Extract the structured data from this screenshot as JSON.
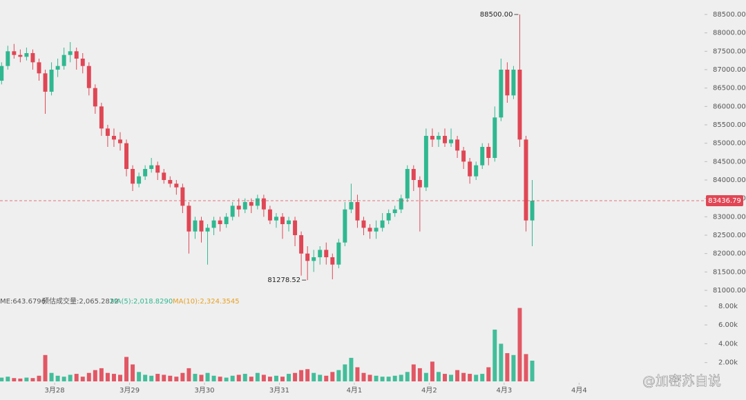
{
  "chart_data": {
    "type": "candlestick",
    "x": [
      -17,
      -15,
      -13,
      -11,
      -9,
      -7,
      -5,
      -3,
      -1,
      1,
      3,
      5,
      7,
      9,
      11,
      13,
      15,
      17,
      19,
      21,
      23,
      25,
      27,
      29,
      31,
      33,
      35,
      37,
      39,
      41,
      43,
      45,
      47,
      49,
      51,
      53,
      55,
      57,
      59,
      61,
      63,
      65,
      67,
      69,
      71,
      73,
      75,
      77,
      79,
      81,
      83,
      85,
      87,
      89,
      91,
      93,
      95,
      97,
      99,
      101,
      103,
      105,
      107,
      109,
      111,
      113,
      115,
      117,
      119,
      121,
      123,
      125,
      127,
      129,
      131,
      133,
      135,
      137,
      139,
      141,
      143,
      145,
      147,
      149,
      151,
      153
    ],
    "open": [
      86700,
      87100,
      87500,
      87400,
      87350,
      87450,
      87200,
      86900,
      86400,
      87000,
      87100,
      87400,
      87500,
      87300,
      87100,
      86500,
      86000,
      85400,
      85200,
      85100,
      85000,
      84300,
      83900,
      84100,
      84300,
      84400,
      84200,
      84000,
      83900,
      83800,
      83300,
      82600,
      82900,
      82600,
      82700,
      82900,
      82800,
      83000,
      83300,
      83200,
      83400,
      83300,
      83500,
      83200,
      82900,
      83000,
      82800,
      82900,
      82500,
      82000,
      81800,
      81900,
      82100,
      81900,
      81700,
      82300,
      83200,
      83400,
      82900,
      82700,
      82600,
      82700,
      82900,
      83100,
      83200,
      83500,
      84300,
      84000,
      83800,
      85200,
      85100,
      85200,
      85000,
      85100,
      84800,
      84500,
      84100,
      84400,
      84900,
      84600,
      85700,
      87000,
      86300,
      87000,
      85100,
      82900
    ],
    "high": [
      87200,
      87650,
      87700,
      87550,
      87600,
      87550,
      87300,
      87000,
      87200,
      87300,
      87600,
      87750,
      87600,
      87450,
      87200,
      86600,
      86100,
      85500,
      85400,
      85300,
      85100,
      84400,
      84200,
      84400,
      84600,
      84500,
      84300,
      84100,
      84000,
      83900,
      83400,
      83000,
      83000,
      82800,
      83000,
      83000,
      83100,
      83400,
      83500,
      83500,
      83500,
      83600,
      83600,
      83300,
      83100,
      83100,
      83000,
      83000,
      82600,
      82200,
      82100,
      82200,
      82300,
      82000,
      82400,
      83400,
      83900,
      83600,
      83000,
      82800,
      82900,
      83100,
      83200,
      83300,
      83600,
      84400,
      84400,
      84100,
      85400,
      85400,
      85300,
      85400,
      85400,
      85200,
      84900,
      84600,
      84500,
      85000,
      85000,
      86000,
      87300,
      87200,
      87100,
      88500,
      85200,
      84000
    ],
    "low": [
      86600,
      87000,
      87300,
      87200,
      87250,
      87000,
      86700,
      85800,
      86300,
      86800,
      87000,
      87200,
      87000,
      86900,
      86300,
      85800,
      85200,
      84900,
      84900,
      84800,
      84100,
      83700,
      83800,
      84000,
      84200,
      84000,
      83900,
      83800,
      83600,
      83100,
      82000,
      82400,
      82300,
      81700,
      82500,
      82600,
      82700,
      82900,
      83000,
      83100,
      83100,
      83200,
      83000,
      82800,
      82700,
      82400,
      82600,
      82200,
      81400,
      81278.52,
      81500,
      81700,
      81700,
      81300,
      81600,
      82200,
      83100,
      82700,
      82500,
      82400,
      82400,
      82600,
      82800,
      83000,
      83100,
      83400,
      83700,
      82600,
      83700,
      84900,
      84900,
      84900,
      84900,
      84600,
      84300,
      83900,
      84000,
      84300,
      84400,
      84500,
      85600,
      86100,
      86200,
      84900,
      82600,
      82200
    ],
    "close": [
      87100,
      87500,
      87400,
      87350,
      87450,
      87200,
      86900,
      86400,
      87000,
      87100,
      87400,
      87500,
      87300,
      87100,
      86500,
      86000,
      85400,
      85200,
      85100,
      85000,
      84300,
      83900,
      84100,
      84300,
      84400,
      84200,
      84000,
      83900,
      83800,
      83300,
      82600,
      82900,
      82600,
      82700,
      82900,
      82800,
      83000,
      83300,
      83200,
      83400,
      83300,
      83500,
      83200,
      82900,
      83000,
      82800,
      82900,
      82500,
      82000,
      81800,
      81900,
      82100,
      81900,
      81700,
      82300,
      83200,
      83400,
      82900,
      82700,
      82600,
      82700,
      82900,
      83100,
      83200,
      83500,
      84300,
      84000,
      83800,
      85200,
      85100,
      85200,
      85000,
      85100,
      84800,
      84500,
      84100,
      84400,
      84900,
      84600,
      85700,
      87000,
      86300,
      87000,
      85100,
      82900,
      83436.79
    ],
    "volume": [
      400,
      500,
      350,
      300,
      400,
      350,
      600,
      2800,
      900,
      600,
      500,
      700,
      800,
      500,
      900,
      1200,
      1400,
      900,
      800,
      700,
      2600,
      1800,
      1000,
      700,
      600,
      800,
      700,
      600,
      500,
      900,
      1400,
      800,
      700,
      900,
      600,
      500,
      400,
      600,
      700,
      800,
      500,
      900,
      700,
      500,
      600,
      500,
      800,
      900,
      1200,
      1300,
      900,
      700,
      600,
      1000,
      1200,
      1800,
      2500,
      1500,
      900,
      700,
      600,
      500,
      500,
      600,
      700,
      1000,
      1800,
      1400,
      900,
      2100,
      1000,
      800,
      700,
      1200,
      900,
      800,
      700,
      800,
      1500,
      5500,
      4000,
      3000,
      2800,
      7800,
      2900,
      2200
    ],
    "up_color": "#2fb890",
    "down_color": "#e04654",
    "xlim": [
      -17.5,
      208.2
    ],
    "xticks": [
      {
        "value": 0,
        "label": "3月28"
      },
      {
        "value": 24,
        "label": "3月29"
      },
      {
        "value": 48,
        "label": "3月30"
      },
      {
        "value": 72,
        "label": "3月31"
      },
      {
        "value": 96,
        "label": "4月1"
      },
      {
        "value": 120,
        "label": "4月2"
      },
      {
        "value": 144,
        "label": "4月3"
      },
      {
        "value": 168,
        "label": "4月4"
      }
    ],
    "ylim": [
      80831,
      88894
    ],
    "yticks": [
      {
        "value": 81000,
        "label": "81000.00"
      },
      {
        "value": 81500,
        "label": "81500.00"
      },
      {
        "value": 82000,
        "label": "82000.00"
      },
      {
        "value": 82500,
        "label": "82500.00"
      },
      {
        "value": 83000,
        "label": "83000.00"
      },
      {
        "value": 83500,
        "label": "83500.00"
      },
      {
        "value": 84000,
        "label": "84000.00"
      },
      {
        "value": 84500,
        "label": "84500.00"
      },
      {
        "value": 85000,
        "label": "85000.00"
      },
      {
        "value": 85500,
        "label": "85500.00"
      },
      {
        "value": 86000,
        "label": "86000.00"
      },
      {
        "value": 86500,
        "label": "86500.00"
      },
      {
        "value": 87000,
        "label": "87000.00"
      },
      {
        "value": 87500,
        "label": "87500.00"
      },
      {
        "value": 88000,
        "label": "88000.00"
      },
      {
        "value": 88500,
        "label": "88500.00"
      }
    ],
    "y2lim": [
      0,
      8280
    ],
    "y2ticks": [
      {
        "value": 2000,
        "label": "2.00k"
      },
      {
        "value": 4000,
        "label": "4.00k"
      },
      {
        "value": 6000,
        "label": "6.00k"
      },
      {
        "value": 8000,
        "label": "8.00k"
      }
    ],
    "max_label": {
      "value": 88500,
      "label": "88500.00"
    },
    "min_label": {
      "value": 81278.52,
      "label": "81278.52"
    },
    "last_price": {
      "value": 83436.79,
      "label": "83436.79"
    },
    "volume_legend": {
      "volume": "ME:643.6796",
      "estimate": "预估成交量:2,065.2822",
      "ma5": "MA(5):2,018.8290",
      "ma10": "MA(10):2,324.3545"
    },
    "watermark": "@加密苏自说"
  }
}
